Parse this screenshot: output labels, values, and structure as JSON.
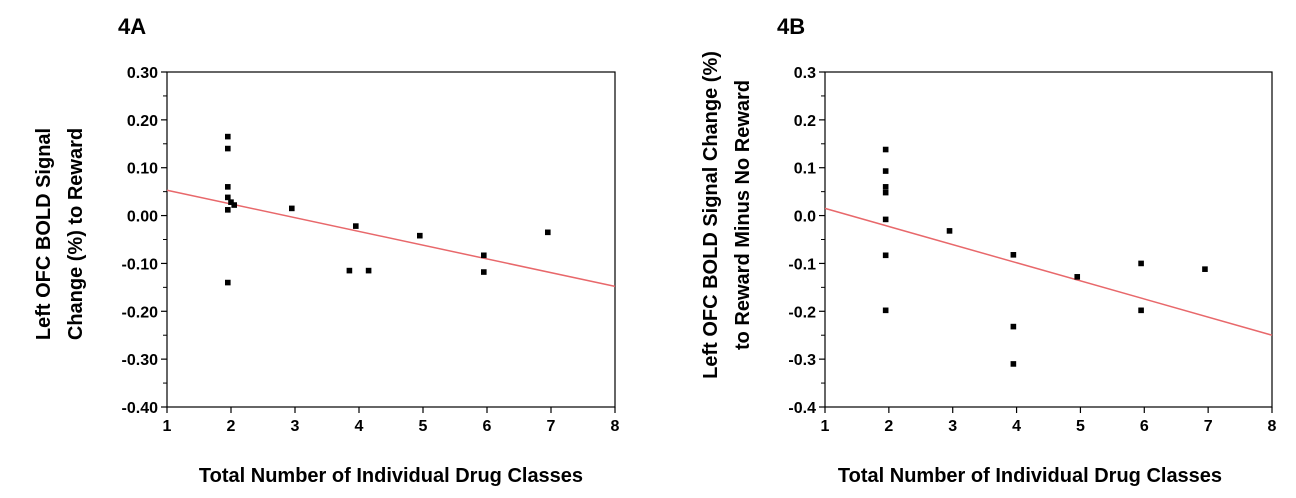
{
  "chart_data": [
    {
      "type": "scatter",
      "panel_label": "4A",
      "title": "",
      "xlabel": "Total Number of Individual Drug Classes",
      "ylabel_lines": [
        "Left  OFC BOLD Signal",
        "Change (%) to Reward"
      ],
      "xlim": [
        1,
        8
      ],
      "ylim": [
        -0.4,
        0.3
      ],
      "xticks": [
        "1",
        "2",
        "3",
        "4",
        "5",
        "6",
        "7",
        "8"
      ],
      "yticks": [
        "0.30",
        "0.20",
        "0.10",
        "0.00",
        "-0.10",
        "-0.20",
        "-0.30",
        "-0.40"
      ],
      "grid": false,
      "legend": "none",
      "point_color": "#000000",
      "line_color": "#e8686b",
      "points": [
        {
          "x": 1.95,
          "y": 0.165
        },
        {
          "x": 1.95,
          "y": 0.14
        },
        {
          "x": 1.95,
          "y": 0.06
        },
        {
          "x": 1.95,
          "y": 0.038
        },
        {
          "x": 1.95,
          "y": 0.012
        },
        {
          "x": 2.0,
          "y": 0.028
        },
        {
          "x": 2.05,
          "y": 0.022
        },
        {
          "x": 1.95,
          "y": -0.14
        },
        {
          "x": 2.95,
          "y": 0.015
        },
        {
          "x": 3.85,
          "y": -0.115
        },
        {
          "x": 3.95,
          "y": -0.022
        },
        {
          "x": 4.15,
          "y": -0.115
        },
        {
          "x": 4.95,
          "y": -0.042
        },
        {
          "x": 5.95,
          "y": -0.083
        },
        {
          "x": 5.95,
          "y": -0.118
        },
        {
          "x": 6.95,
          "y": -0.035
        }
      ],
      "fit_line": {
        "x": [
          1,
          8
        ],
        "y": [
          0.053,
          -0.148
        ]
      }
    },
    {
      "type": "scatter",
      "panel_label": "4B",
      "title": "",
      "xlabel": "Total Number of Individual Drug Classes",
      "ylabel_lines": [
        "Left OFC BOLD Signal Change (%)",
        "to Reward  Minus No Reward"
      ],
      "xlim": [
        1,
        8
      ],
      "ylim": [
        -0.4,
        0.3
      ],
      "xticks": [
        "1",
        "2",
        "3",
        "4",
        "5",
        "6",
        "7",
        "8"
      ],
      "yticks": [
        "0.3",
        "0.2",
        "0.1",
        "0.0",
        "-0.1",
        "-0.2",
        "-0.3",
        "-0.4"
      ],
      "grid": false,
      "legend": "none",
      "point_color": "#000000",
      "line_color": "#e8686b",
      "points": [
        {
          "x": 1.95,
          "y": 0.138
        },
        {
          "x": 1.95,
          "y": 0.093
        },
        {
          "x": 1.95,
          "y": 0.06
        },
        {
          "x": 1.95,
          "y": 0.048
        },
        {
          "x": 1.95,
          "y": -0.008
        },
        {
          "x": 1.95,
          "y": -0.083
        },
        {
          "x": 1.95,
          "y": -0.198
        },
        {
          "x": 2.95,
          "y": -0.032
        },
        {
          "x": 3.95,
          "y": -0.082
        },
        {
          "x": 3.95,
          "y": -0.232
        },
        {
          "x": 3.95,
          "y": -0.31
        },
        {
          "x": 4.95,
          "y": -0.128
        },
        {
          "x": 5.95,
          "y": -0.1
        },
        {
          "x": 5.95,
          "y": -0.198
        },
        {
          "x": 6.95,
          "y": -0.112
        }
      ],
      "fit_line": {
        "x": [
          1,
          8
        ],
        "y": [
          0.015,
          -0.25
        ]
      }
    }
  ]
}
